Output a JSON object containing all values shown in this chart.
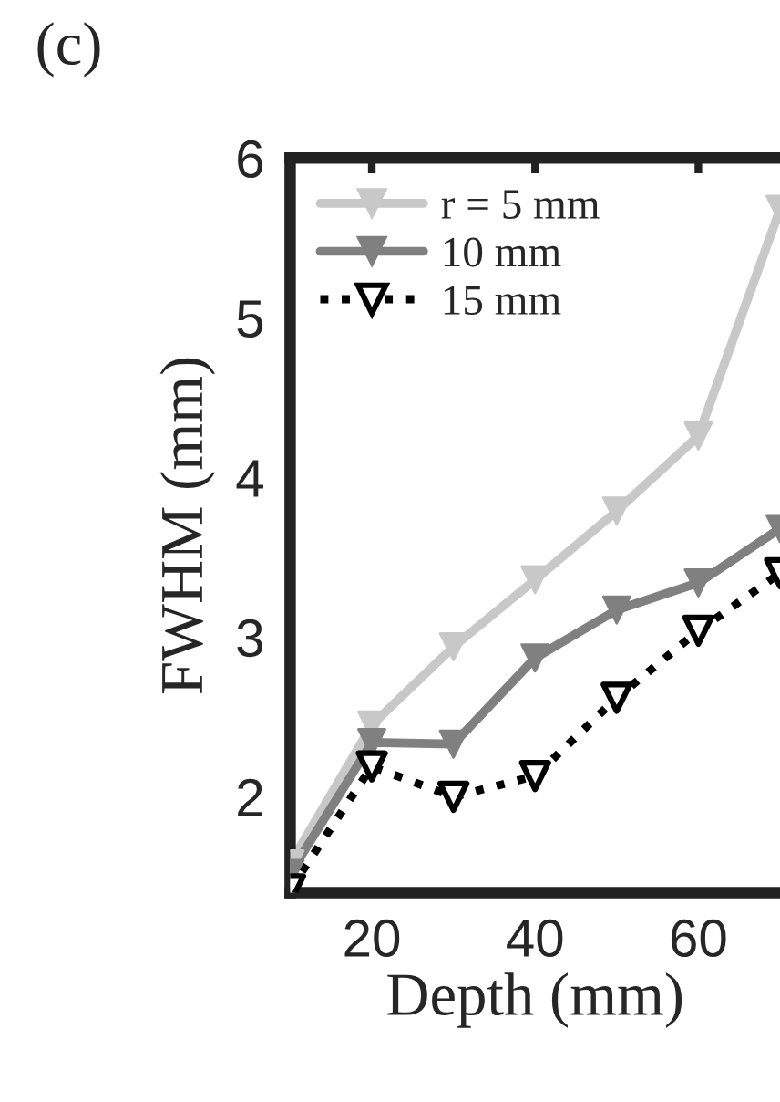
{
  "chart_data": {
    "type": "line",
    "title": "(c)",
    "xlabel": "Depth (mm)",
    "ylabel": "FWHM (mm)",
    "x": [
      10,
      20,
      30,
      40,
      50,
      60,
      70
    ],
    "series": [
      {
        "name": "r = 5 mm",
        "color": "#c8c8c8",
        "values": [
          1.58,
          2.45,
          2.94,
          3.36,
          3.79,
          4.26,
          5.68
        ],
        "line_style": "solid"
      },
      {
        "name": "10 mm",
        "color": "#808080",
        "values": [
          1.52,
          2.34,
          2.33,
          2.87,
          3.17,
          3.34,
          3.68
        ],
        "line_style": "solid"
      },
      {
        "name": "15 mm",
        "color": "#000000",
        "values": [
          1.42,
          2.19,
          2.0,
          2.13,
          2.62,
          3.04,
          3.4
        ],
        "line_style": "dotted"
      }
    ],
    "xlim": [
      10,
      70
    ],
    "ylim": [
      1.4,
      6
    ],
    "xticks": [
      20,
      40,
      60
    ],
    "yticks": [
      2,
      3,
      4,
      5,
      6
    ],
    "marker": "triangle",
    "legend": "top left",
    "grid": false
  }
}
